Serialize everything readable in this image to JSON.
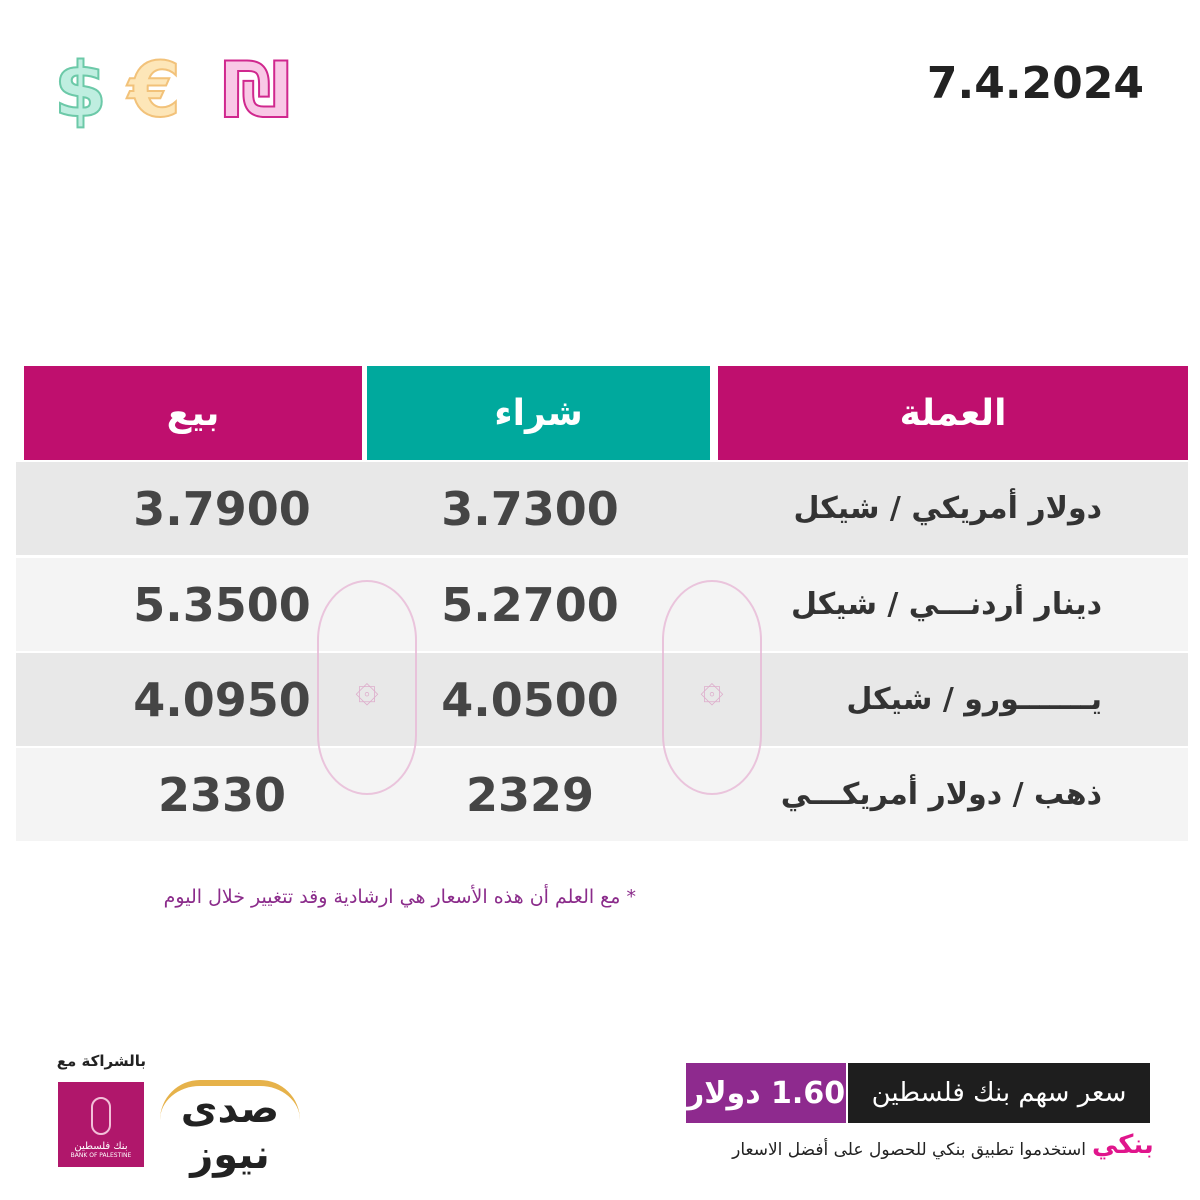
{
  "date": "7.4.2024",
  "icons": {
    "dollar": "$",
    "euro": "€",
    "shekel": "₪"
  },
  "colors": {
    "magenta": "#bf0f6e",
    "teal": "#00a99d",
    "purple": "#8e2a8e",
    "dark": "#1e1e1e"
  },
  "table": {
    "headers": {
      "currency": "العملة",
      "buy": "شراء",
      "sell": "بيع"
    },
    "rows": [
      {
        "currency": "دولار أمريكي / شيكل",
        "buy": "3.7300",
        "sell": "3.7900"
      },
      {
        "currency": "دينار أردنـــي / شيكل",
        "buy": "5.2700",
        "sell": "5.3500"
      },
      {
        "currency": "يـــــــورو / شيكل",
        "buy": "4.0500",
        "sell": "4.0950"
      },
      {
        "currency": "ذهب / دولار أمريكـــي",
        "buy": "2329",
        "sell": "2330"
      }
    ]
  },
  "note": "* مع العلم أن هذه الأسعار هي ارشادية وقد تتغيير خلال اليوم",
  "footer": {
    "partnership": "بالشراكة مع",
    "bank_logo_ar": "بنك فلسطين",
    "bank_logo_en": "BANK OF PALESTINE",
    "news_logo": "صدى نيوز",
    "share_label": "سعر سهم بنك فلسطين",
    "share_price": "1.60 دولار",
    "banki_logo": "بنكي",
    "app_promo": "استخدموا تطبيق بنكي للحصول على أفضل الاسعار"
  }
}
